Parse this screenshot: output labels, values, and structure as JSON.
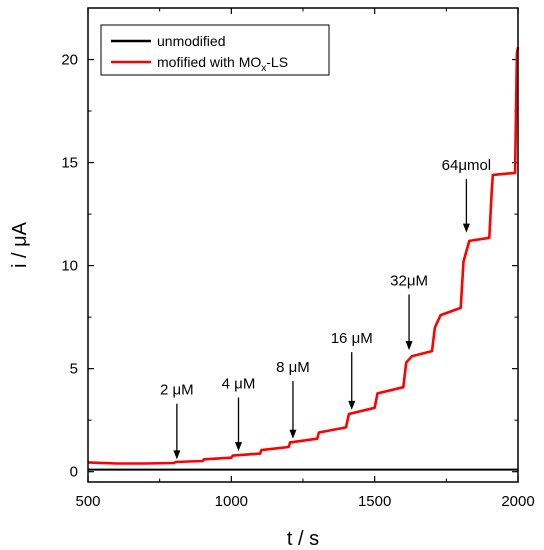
{
  "chart_data": {
    "type": "line",
    "xlabel": "t / s",
    "ylabel": "i / μA",
    "xlim": [
      500,
      2000
    ],
    "ylim": [
      -0.5,
      22.5
    ],
    "xticks": [
      500,
      1000,
      1500,
      2000
    ],
    "yticks": [
      0,
      5,
      10,
      15,
      20
    ],
    "legend_position": "top-left",
    "series": [
      {
        "name": "unmodified",
        "color": "#000000",
        "x": [
          500,
          2000
        ],
        "y": [
          0.1,
          0.1
        ]
      },
      {
        "name": "mofified with MOx-LS",
        "name_main": "mofified with MO",
        "name_sub": "x",
        "name_tail": "-LS",
        "color": "#ff0000",
        "x": [
          500,
          600,
          700,
          800,
          805,
          900,
          905,
          1000,
          1005,
          1100,
          1105,
          1200,
          1205,
          1300,
          1305,
          1400,
          1410,
          1500,
          1510,
          1600,
          1610,
          1630,
          1700,
          1710,
          1730,
          1800,
          1810,
          1830,
          1900,
          1908,
          1912,
          1990,
          1996,
          2000
        ],
        "y": [
          0.45,
          0.4,
          0.4,
          0.42,
          0.47,
          0.52,
          0.6,
          0.68,
          0.78,
          0.88,
          1.05,
          1.2,
          1.42,
          1.6,
          1.9,
          2.15,
          2.8,
          3.1,
          3.8,
          4.1,
          5.3,
          5.6,
          5.85,
          7.0,
          7.6,
          7.95,
          10.2,
          11.2,
          11.35,
          13.5,
          14.4,
          14.5,
          20.3,
          20.6
        ]
      }
    ],
    "annotations": [
      {
        "text": "2 μM",
        "x": 810,
        "y_tip": 0.6,
        "y_tail": 3.3
      },
      {
        "text": "4 μM",
        "x": 1025,
        "y_tip": 1.0,
        "y_tail": 3.6
      },
      {
        "text": "8 μM",
        "x": 1215,
        "y_tip": 1.6,
        "y_tail": 4.4
      },
      {
        "text": "16 μM",
        "x": 1420,
        "y_tip": 3.0,
        "y_tail": 5.8
      },
      {
        "text": "32μM",
        "x": 1620,
        "y_tip": 5.9,
        "y_tail": 8.6
      },
      {
        "text": "64μmol",
        "x": 1820,
        "y_tip": 11.6,
        "y_tail": 14.2
      }
    ]
  }
}
